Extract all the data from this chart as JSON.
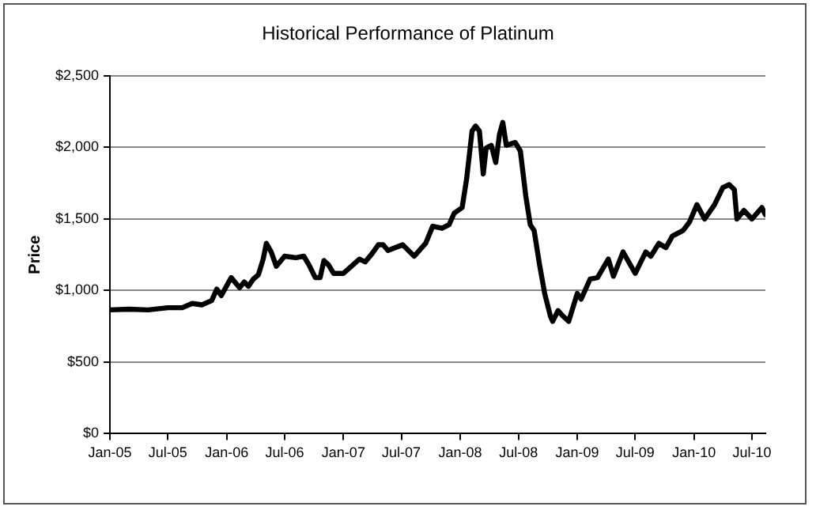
{
  "chart_data": {
    "type": "line",
    "title": "Historical Performance  of Platinum",
    "ylabel": "Price",
    "xlim": [
      "2005-01-01",
      "2010-08-12"
    ],
    "xticks": [
      {
        "value": "2005-01-01",
        "label": "Jan-05"
      },
      {
        "value": "2005-07-01",
        "label": "Jul-05"
      },
      {
        "value": "2006-01-01",
        "label": "Jan-06"
      },
      {
        "value": "2006-07-01",
        "label": "Jul-06"
      },
      {
        "value": "2007-01-01",
        "label": "Jan-07"
      },
      {
        "value": "2007-07-01",
        "label": "Jul-07"
      },
      {
        "value": "2008-01-01",
        "label": "Jan-08"
      },
      {
        "value": "2008-07-01",
        "label": "Jul-08"
      },
      {
        "value": "2009-01-01",
        "label": "Jan-09"
      },
      {
        "value": "2009-07-01",
        "label": "Jul-09"
      },
      {
        "value": "2010-01-01",
        "label": "Jan-10"
      },
      {
        "value": "2010-07-01",
        "label": "Jul-10"
      }
    ],
    "ylim": [
      0,
      2500
    ],
    "yticks": [
      {
        "value": 0,
        "label": "$0"
      },
      {
        "value": 500,
        "label": "$500"
      },
      {
        "value": 1000,
        "label": "$1,000"
      },
      {
        "value": 1500,
        "label": "$1,500"
      },
      {
        "value": 2000,
        "label": "$2,000"
      },
      {
        "value": 2500,
        "label": "$2,500"
      }
    ],
    "grid": "y",
    "legend": false,
    "marker": "none",
    "line_style": "solid",
    "series": [
      {
        "color": "#000000",
        "x": [
          "2005-01-01",
          "2005-03-01",
          "2005-05-01",
          "2005-07-01",
          "2005-08-15",
          "2005-09-15",
          "2005-10-15",
          "2005-11-15",
          "2005-12-01",
          "2005-12-15",
          "2006-01-15",
          "2006-02-10",
          "2006-02-25",
          "2006-03-10",
          "2006-03-25",
          "2006-04-10",
          "2006-04-25",
          "2006-05-05",
          "2006-05-20",
          "2006-06-05",
          "2006-07-01",
          "2006-08-05",
          "2006-08-30",
          "2006-09-15",
          "2006-10-05",
          "2006-10-20",
          "2006-11-01",
          "2006-11-15",
          "2006-12-01",
          "2007-01-01",
          "2007-02-20",
          "2007-03-10",
          "2007-04-01",
          "2007-04-20",
          "2007-05-05",
          "2007-05-20",
          "2007-07-05",
          "2007-08-10",
          "2007-09-15",
          "2007-10-07",
          "2007-11-05",
          "2007-11-27",
          "2007-12-13",
          "2008-01-07",
          "2008-01-21",
          "2008-02-07",
          "2008-02-18",
          "2008-03-01",
          "2008-03-13",
          "2008-03-22",
          "2008-04-07",
          "2008-04-21",
          "2008-05-03",
          "2008-05-13",
          "2008-05-24",
          "2008-06-21",
          "2008-07-07",
          "2008-07-24",
          "2008-08-07",
          "2008-08-19",
          "2008-09-05",
          "2008-09-21",
          "2008-10-09",
          "2008-10-16",
          "2008-11-02",
          "2008-11-18",
          "2008-12-05",
          "2009-01-01",
          "2009-01-13",
          "2009-02-10",
          "2009-03-05",
          "2009-04-08",
          "2009-04-24",
          "2009-05-24",
          "2009-07-01",
          "2009-08-03",
          "2009-08-19",
          "2009-09-13",
          "2009-10-05",
          "2009-10-25",
          "2009-11-28",
          "2009-12-18",
          "2010-01-10",
          "2010-02-03",
          "2010-03-06",
          "2010-04-01",
          "2010-04-21",
          "2010-05-07",
          "2010-05-15",
          "2010-06-06",
          "2010-07-01",
          "2010-08-01",
          "2010-08-12"
        ],
        "values": [
          865,
          870,
          865,
          880,
          880,
          910,
          900,
          930,
          1010,
          965,
          1090,
          1020,
          1060,
          1030,
          1080,
          1110,
          1220,
          1330,
          1270,
          1170,
          1240,
          1230,
          1240,
          1180,
          1090,
          1090,
          1210,
          1180,
          1120,
          1120,
          1220,
          1200,
          1260,
          1320,
          1320,
          1280,
          1320,
          1240,
          1330,
          1450,
          1435,
          1460,
          1540,
          1580,
          1780,
          2115,
          2150,
          2115,
          1815,
          1995,
          2015,
          1895,
          2095,
          2175,
          2015,
          2035,
          1975,
          1660,
          1460,
          1420,
          1180,
          980,
          820,
          785,
          860,
          820,
          785,
          980,
          940,
          1080,
          1090,
          1220,
          1100,
          1270,
          1120,
          1270,
          1240,
          1330,
          1300,
          1380,
          1420,
          1480,
          1600,
          1500,
          1600,
          1720,
          1740,
          1705,
          1500,
          1560,
          1500,
          1580,
          1530
        ]
      }
    ]
  }
}
